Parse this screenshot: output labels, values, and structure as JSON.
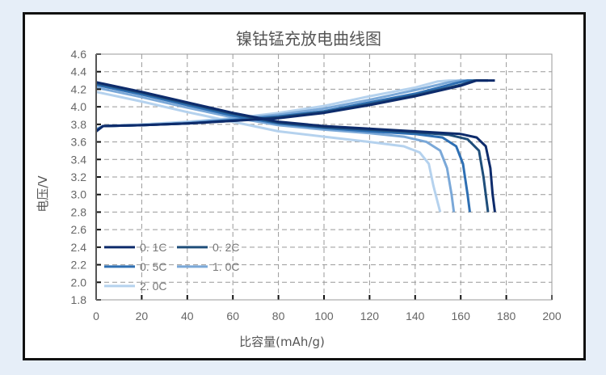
{
  "chart_data": {
    "type": "line",
    "title": "镍钴锰充放电曲线图",
    "xlabel": "比容量(mAh/g)",
    "ylabel": "电压/V",
    "xlim": [
      0,
      200
    ],
    "ylim": [
      1.8,
      4.6
    ],
    "xticks": [
      "0",
      "20",
      "40",
      "60",
      "80",
      "100",
      "120",
      "140",
      "160",
      "180",
      "200"
    ],
    "yticks": [
      "1.8",
      "2.0",
      "2.2",
      "2.4",
      "2.6",
      "2.8",
      "3.0",
      "3.2",
      "3.4",
      "3.6",
      "3.8",
      "4.0",
      "4.2",
      "4.4",
      "4.6"
    ],
    "grid": true,
    "legend_position": "bottom-left",
    "series": [
      {
        "name": "0. 1C",
        "color": "#0d2b6b",
        "discharge": [
          [
            0,
            4.28
          ],
          [
            20,
            4.17
          ],
          [
            40,
            4.05
          ],
          [
            60,
            3.93
          ],
          [
            80,
            3.83
          ],
          [
            100,
            3.78
          ],
          [
            120,
            3.75
          ],
          [
            140,
            3.72
          ],
          [
            160,
            3.69
          ],
          [
            167,
            3.65
          ],
          [
            171,
            3.55
          ],
          [
            173,
            3.3
          ],
          [
            174,
            3.0
          ],
          [
            175,
            2.8
          ]
        ],
        "charge": [
          [
            0,
            3.72
          ],
          [
            3,
            3.78
          ],
          [
            20,
            3.79
          ],
          [
            40,
            3.81
          ],
          [
            60,
            3.84
          ],
          [
            80,
            3.87
          ],
          [
            100,
            3.93
          ],
          [
            120,
            4.02
          ],
          [
            140,
            4.12
          ],
          [
            160,
            4.24
          ],
          [
            167,
            4.3
          ],
          [
            175,
            4.3
          ]
        ]
      },
      {
        "name": "0. 2C",
        "color": "#1f4e7a",
        "discharge": [
          [
            0,
            4.27
          ],
          [
            20,
            4.16
          ],
          [
            40,
            4.04
          ],
          [
            60,
            3.92
          ],
          [
            80,
            3.82
          ],
          [
            100,
            3.77
          ],
          [
            120,
            3.74
          ],
          [
            140,
            3.71
          ],
          [
            155,
            3.68
          ],
          [
            163,
            3.63
          ],
          [
            168,
            3.5
          ],
          [
            170,
            3.2
          ],
          [
            171.5,
            2.9
          ],
          [
            172,
            2.8
          ]
        ],
        "charge": [
          [
            0,
            3.72
          ],
          [
            3,
            3.78
          ],
          [
            20,
            3.79
          ],
          [
            40,
            3.81
          ],
          [
            60,
            3.84
          ],
          [
            80,
            3.88
          ],
          [
            100,
            3.94
          ],
          [
            120,
            4.03
          ],
          [
            140,
            4.13
          ],
          [
            160,
            4.25
          ],
          [
            166,
            4.3
          ],
          [
            172,
            4.3
          ]
        ]
      },
      {
        "name": "0. 5C",
        "color": "#2e6fb3",
        "discharge": [
          [
            0,
            4.25
          ],
          [
            20,
            4.14
          ],
          [
            40,
            4.02
          ],
          [
            60,
            3.9
          ],
          [
            80,
            3.81
          ],
          [
            100,
            3.76
          ],
          [
            120,
            3.72
          ],
          [
            140,
            3.69
          ],
          [
            152,
            3.65
          ],
          [
            158,
            3.55
          ],
          [
            161,
            3.35
          ],
          [
            163,
            3.0
          ],
          [
            164,
            2.8
          ]
        ],
        "charge": [
          [
            0,
            3.73
          ],
          [
            3,
            3.78
          ],
          [
            20,
            3.79
          ],
          [
            40,
            3.81
          ],
          [
            60,
            3.85
          ],
          [
            80,
            3.89
          ],
          [
            100,
            3.95
          ],
          [
            120,
            4.05
          ],
          [
            140,
            4.15
          ],
          [
            158,
            4.27
          ],
          [
            163,
            4.3
          ],
          [
            172,
            4.3
          ]
        ]
      },
      {
        "name": "1. 0C",
        "color": "#7aa8d8",
        "discharge": [
          [
            0,
            4.22
          ],
          [
            20,
            4.11
          ],
          [
            40,
            3.99
          ],
          [
            60,
            3.88
          ],
          [
            80,
            3.79
          ],
          [
            100,
            3.74
          ],
          [
            120,
            3.7
          ],
          [
            135,
            3.66
          ],
          [
            145,
            3.6
          ],
          [
            151,
            3.5
          ],
          [
            154,
            3.3
          ],
          [
            156,
            3.0
          ],
          [
            157,
            2.8
          ]
        ],
        "charge": [
          [
            0,
            3.74
          ],
          [
            3,
            3.78
          ],
          [
            20,
            3.79
          ],
          [
            40,
            3.82
          ],
          [
            60,
            3.86
          ],
          [
            80,
            3.91
          ],
          [
            100,
            3.98
          ],
          [
            120,
            4.08
          ],
          [
            140,
            4.19
          ],
          [
            155,
            4.28
          ],
          [
            160,
            4.3
          ],
          [
            165,
            4.3
          ]
        ]
      },
      {
        "name": "2. 0C",
        "color": "#b5d2ee",
        "discharge": [
          [
            0,
            4.17
          ],
          [
            20,
            4.06
          ],
          [
            40,
            3.94
          ],
          [
            60,
            3.83
          ],
          [
            80,
            3.72
          ],
          [
            100,
            3.66
          ],
          [
            120,
            3.6
          ],
          [
            135,
            3.55
          ],
          [
            142,
            3.48
          ],
          [
            146,
            3.35
          ],
          [
            148,
            3.1
          ],
          [
            150,
            2.9
          ],
          [
            151,
            2.8
          ]
        ],
        "charge": [
          [
            0,
            3.75
          ],
          [
            3,
            3.78
          ],
          [
            20,
            3.8
          ],
          [
            40,
            3.83
          ],
          [
            60,
            3.87
          ],
          [
            80,
            3.93
          ],
          [
            100,
            4.01
          ],
          [
            120,
            4.12
          ],
          [
            140,
            4.22
          ],
          [
            150,
            4.29
          ],
          [
            155,
            4.3
          ],
          [
            160,
            4.3
          ]
        ]
      }
    ]
  }
}
